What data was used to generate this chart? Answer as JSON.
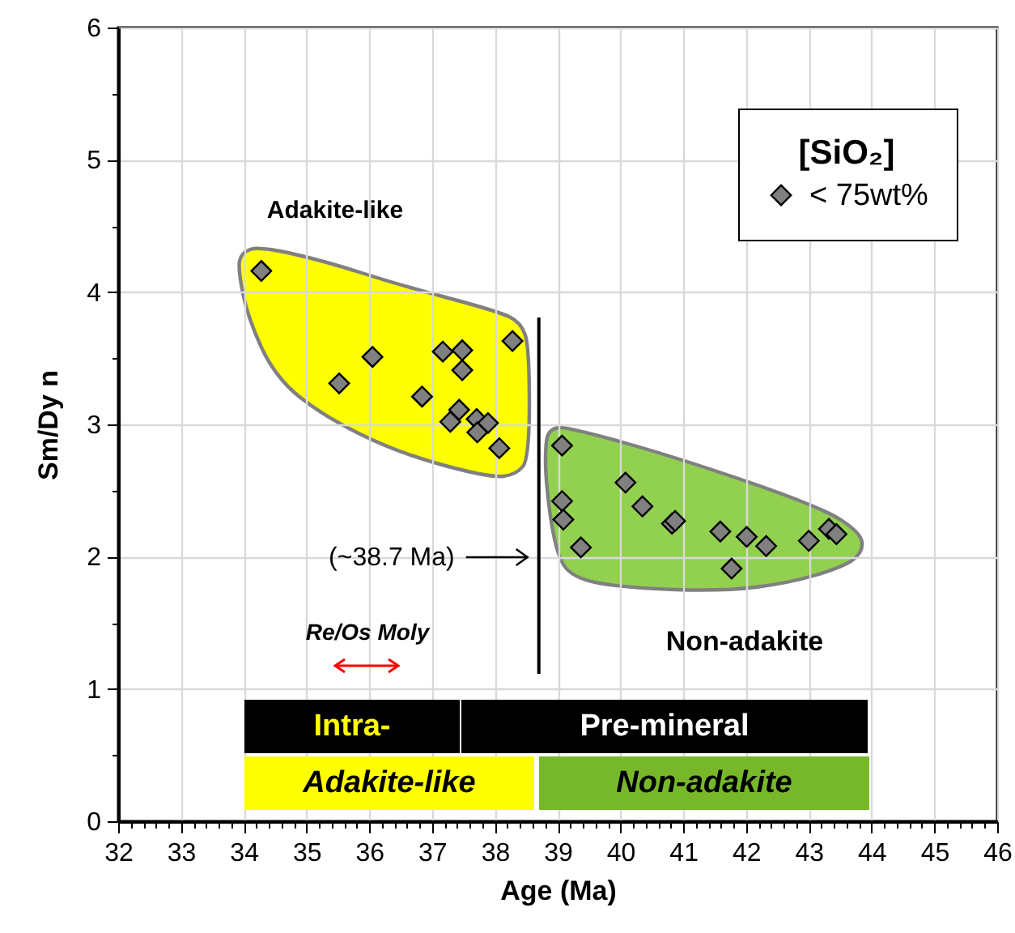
{
  "chart_data": {
    "type": "scatter",
    "xlabel": "Age (Ma)",
    "ylabel": "Sm/Dy n",
    "legend_title": "[SiO₂]",
    "legend": "top right",
    "marker": "diamond",
    "grid": true,
    "xlim": [
      32,
      46
    ],
    "xticks": [
      32,
      {
        "value": 32.2,
        "label": null
      },
      {
        "value": 32.4,
        "label": null
      },
      {
        "value": 32.6,
        "label": null
      },
      {
        "value": 32.8,
        "label": null
      },
      33,
      {
        "value": 33.2,
        "label": null
      },
      {
        "value": 33.4,
        "label": null
      },
      {
        "value": 33.6,
        "label": null
      },
      {
        "value": 33.8,
        "label": null
      },
      34,
      {
        "value": 34.2,
        "label": null
      },
      {
        "value": 34.4,
        "label": null
      },
      {
        "value": 34.6,
        "label": null
      },
      {
        "value": 34.8,
        "label": null
      },
      35,
      {
        "value": 35.2,
        "label": null
      },
      {
        "value": 35.4,
        "label": null
      },
      {
        "value": 35.6,
        "label": null
      },
      {
        "value": 35.8,
        "label": null
      },
      36,
      {
        "value": 36.2,
        "label": null
      },
      {
        "value": 36.4,
        "label": null
      },
      {
        "value": 36.6,
        "label": null
      },
      {
        "value": 36.8,
        "label": null
      },
      37,
      {
        "value": 37.2,
        "label": null
      },
      {
        "value": 37.4,
        "label": null
      },
      {
        "value": 37.6,
        "label": null
      },
      {
        "value": 37.8,
        "label": null
      },
      38,
      {
        "value": 38.2,
        "label": null
      },
      {
        "value": 38.4,
        "label": null
      },
      {
        "value": 38.6,
        "label": null
      },
      {
        "value": 38.8,
        "label": null
      },
      39,
      {
        "value": 39.2,
        "label": null
      },
      {
        "value": 39.4,
        "label": null
      },
      {
        "value": 39.6,
        "label": null
      },
      {
        "value": 39.8,
        "label": null
      },
      40,
      {
        "value": 40.2,
        "label": null
      },
      {
        "value": 40.4,
        "label": null
      },
      {
        "value": 40.6,
        "label": null
      },
      {
        "value": 40.8,
        "label": null
      },
      41,
      {
        "value": 41.2,
        "label": null
      },
      {
        "value": 41.4,
        "label": null
      },
      {
        "value": 41.6,
        "label": null
      },
      {
        "value": 41.8,
        "label": null
      },
      42,
      {
        "value": 42.2,
        "label": null
      },
      {
        "value": 42.4,
        "label": null
      },
      {
        "value": 42.6,
        "label": null
      },
      {
        "value": 42.8,
        "label": null
      },
      43,
      {
        "value": 43.2,
        "label": null
      },
      {
        "value": 43.4,
        "label": null
      },
      {
        "value": 43.6,
        "label": null
      },
      {
        "value": 43.8,
        "label": null
      },
      44,
      {
        "value": 44.2,
        "label": null
      },
      {
        "value": 44.4,
        "label": null
      },
      {
        "value": 44.6,
        "label": null
      },
      {
        "value": 44.8,
        "label": null
      },
      45,
      {
        "value": 45.2,
        "label": null
      },
      {
        "value": 45.4,
        "label": null
      },
      {
        "value": 45.6,
        "label": null
      },
      {
        "value": 45.8,
        "label": null
      },
      46
    ],
    "ylim": [
      0,
      6
    ],
    "yticks": [
      0,
      {
        "value": 0.5,
        "label": null
      },
      1,
      {
        "value": 1.5,
        "label": null
      },
      2,
      {
        "value": 2.5,
        "label": null
      },
      3,
      {
        "value": 3.5,
        "label": null
      },
      4,
      {
        "value": 4.5,
        "label": null
      },
      5,
      {
        "value": 5.5,
        "label": null
      },
      6
    ],
    "series": [
      {
        "name": "< 75wt%",
        "color": "#808080",
        "x": [
          34.28,
          35.52,
          36.05,
          36.84,
          37.17,
          37.48,
          37.48,
          37.43,
          37.29,
          37.71,
          37.89,
          37.72,
          38.07,
          38.28,
          39.07,
          39.07,
          39.09,
          39.37,
          40.08,
          40.35,
          40.82,
          40.87,
          41.59,
          41.77,
          42.01,
          42.32,
          43.0,
          43.32,
          43.44
        ],
        "values": [
          4.16,
          3.31,
          3.51,
          3.21,
          3.55,
          3.56,
          3.41,
          3.11,
          3.02,
          3.04,
          3.01,
          2.94,
          2.82,
          3.63,
          2.84,
          2.42,
          2.28,
          2.07,
          2.56,
          2.38,
          2.25,
          2.27,
          2.19,
          1.91,
          2.15,
          2.08,
          2.12,
          2.21,
          2.17
        ]
      }
    ],
    "ref_lines": [
      {
        "axis": "x",
        "value": 38.7,
        "label": "(~38.7 Ma)",
        "color": "#000000"
      }
    ],
    "annotations": [
      "Adakite-like",
      "Non-adakite",
      "Re/Os Moly",
      "Intra-",
      "Pre-mineral",
      "Adakite-like",
      "Non-adakite"
    ]
  }
}
